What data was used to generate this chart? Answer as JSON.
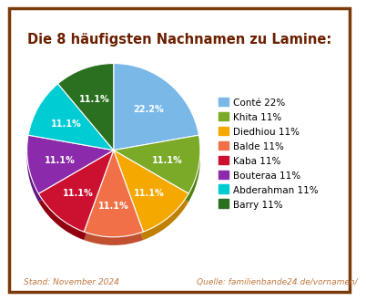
{
  "title": "Die 8 häufigsten Nachnamen zu Lamine:",
  "legend_labels": [
    "Conté 22%",
    "Khita 11%",
    "Diedhiou 11%",
    "Balde 11%",
    "Kaba 11%",
    "Bouteraa 11%",
    "Abderahman 11%",
    "Barry 11%"
  ],
  "values": [
    22.2,
    11.1,
    11.1,
    11.1,
    11.1,
    11.1,
    11.1,
    11.1
  ],
  "colors": [
    "#7ab8e8",
    "#7aaa28",
    "#f5a800",
    "#f07048",
    "#cc1030",
    "#8b2aaa",
    "#00ccd4",
    "#2a7020"
  ],
  "shadow_colors": [
    "#5090c0",
    "#508010",
    "#c08000",
    "#c05030",
    "#900010",
    "#601880",
    "#009090",
    "#104a00"
  ],
  "pct_labels": [
    "22.2%",
    "11.1%",
    "11.1%",
    "11.1%",
    "11.1%",
    "11.1%",
    "11.1%",
    "11.1%"
  ],
  "startangle": 90,
  "counterclock": false,
  "footer_left": "Stand: November 2024",
  "footer_right": "Quelle: familienbande24.de/vornamen/",
  "title_color": "#6b2000",
  "footer_color": "#c07840",
  "background_color": "#ffffff",
  "border_color": "#7a3a0a",
  "shadow_depth": 0.08
}
